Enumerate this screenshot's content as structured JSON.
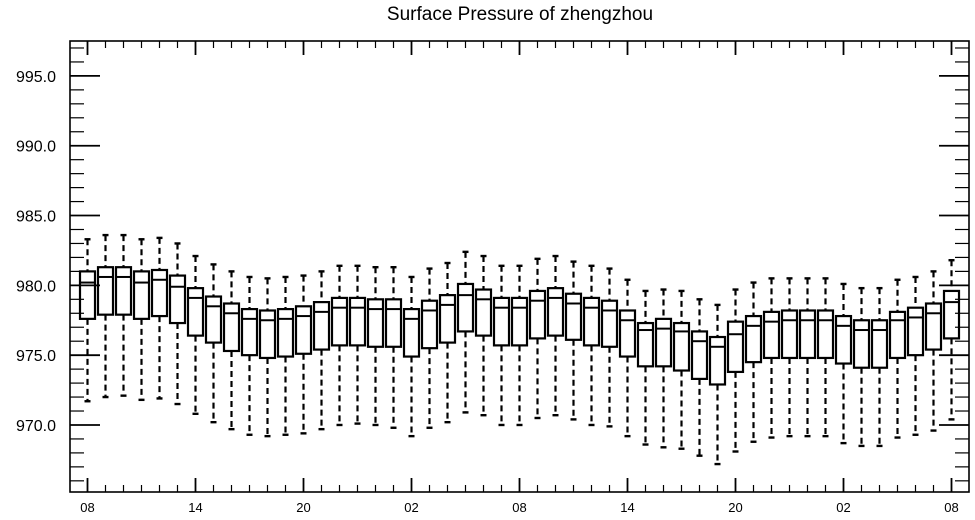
{
  "chart_data": {
    "type": "box",
    "title": "Surface Pressure of zhengzhou",
    "xlabel": "",
    "ylabel": "",
    "ylim": [
      965.2,
      997.5
    ],
    "y_ticks": [
      970.0,
      975.0,
      980.0,
      985.0,
      990.0,
      995.0
    ],
    "y_tick_labels": [
      "970.0",
      "975.0",
      "980.0",
      "985.0",
      "990.0",
      "995.0"
    ],
    "x_tick_labels": [
      "08",
      "14",
      "20",
      "02",
      "08",
      "14",
      "20",
      "02",
      "08"
    ],
    "x_tick_positions": [
      0,
      6,
      12,
      18,
      24,
      30,
      36,
      42,
      48
    ],
    "grid": false,
    "boxes": [
      {
        "x": 0,
        "min": 971.7,
        "q1": 977.6,
        "median": 980.2,
        "q3": 981.0,
        "max": 983.3
      },
      {
        "x": 1,
        "min": 972.0,
        "q1": 977.9,
        "median": 980.6,
        "q3": 981.3,
        "max": 983.6
      },
      {
        "x": 2,
        "min": 972.1,
        "q1": 977.9,
        "median": 980.6,
        "q3": 981.3,
        "max": 983.6
      },
      {
        "x": 3,
        "min": 971.8,
        "q1": 977.6,
        "median": 980.2,
        "q3": 981.0,
        "max": 983.3
      },
      {
        "x": 4,
        "min": 971.9,
        "q1": 977.8,
        "median": 980.4,
        "q3": 981.1,
        "max": 983.4
      },
      {
        "x": 5,
        "min": 971.5,
        "q1": 977.3,
        "median": 979.9,
        "q3": 980.7,
        "max": 983.0
      },
      {
        "x": 6,
        "min": 970.8,
        "q1": 976.4,
        "median": 979.1,
        "q3": 979.8,
        "max": 982.1
      },
      {
        "x": 7,
        "min": 970.2,
        "q1": 975.9,
        "median": 978.5,
        "q3": 979.2,
        "max": 981.5
      },
      {
        "x": 8,
        "min": 969.7,
        "q1": 975.3,
        "median": 978.0,
        "q3": 978.7,
        "max": 981.0
      },
      {
        "x": 9,
        "min": 969.3,
        "q1": 975.0,
        "median": 977.6,
        "q3": 978.3,
        "max": 980.6
      },
      {
        "x": 10,
        "min": 969.2,
        "q1": 974.8,
        "median": 977.5,
        "q3": 978.2,
        "max": 980.5
      },
      {
        "x": 11,
        "min": 969.3,
        "q1": 974.9,
        "median": 977.6,
        "q3": 978.3,
        "max": 980.6
      },
      {
        "x": 12,
        "min": 969.4,
        "q1": 975.1,
        "median": 977.8,
        "q3": 978.5,
        "max": 980.7
      },
      {
        "x": 13,
        "min": 969.7,
        "q1": 975.4,
        "median": 978.1,
        "q3": 978.8,
        "max": 981.0
      },
      {
        "x": 14,
        "min": 970.0,
        "q1": 975.7,
        "median": 978.4,
        "q3": 979.1,
        "max": 981.4
      },
      {
        "x": 15,
        "min": 970.1,
        "q1": 975.7,
        "median": 978.4,
        "q3": 979.1,
        "max": 981.4
      },
      {
        "x": 16,
        "min": 970.0,
        "q1": 975.6,
        "median": 978.3,
        "q3": 979.0,
        "max": 981.3
      },
      {
        "x": 17,
        "min": 969.8,
        "q1": 975.6,
        "median": 978.3,
        "q3": 979.0,
        "max": 981.3
      },
      {
        "x": 18,
        "min": 969.2,
        "q1": 974.9,
        "median": 977.6,
        "q3": 978.3,
        "max": 980.6
      },
      {
        "x": 19,
        "min": 969.8,
        "q1": 975.5,
        "median": 978.2,
        "q3": 978.9,
        "max": 981.2
      },
      {
        "x": 20,
        "min": 970.2,
        "q1": 975.9,
        "median": 978.6,
        "q3": 979.3,
        "max": 981.6
      },
      {
        "x": 21,
        "min": 970.9,
        "q1": 976.7,
        "median": 979.3,
        "q3": 980.1,
        "max": 982.4
      },
      {
        "x": 22,
        "min": 970.7,
        "q1": 976.4,
        "median": 979.0,
        "q3": 979.7,
        "max": 982.1
      },
      {
        "x": 23,
        "min": 970.0,
        "q1": 975.7,
        "median": 978.4,
        "q3": 979.1,
        "max": 981.4
      },
      {
        "x": 24,
        "min": 970.0,
        "q1": 975.7,
        "median": 978.4,
        "q3": 979.1,
        "max": 981.4
      },
      {
        "x": 25,
        "min": 970.5,
        "q1": 976.2,
        "median": 978.9,
        "q3": 979.6,
        "max": 981.9
      },
      {
        "x": 26,
        "min": 970.7,
        "q1": 976.4,
        "median": 979.1,
        "q3": 979.8,
        "max": 982.1
      },
      {
        "x": 27,
        "min": 970.4,
        "q1": 976.1,
        "median": 978.7,
        "q3": 979.4,
        "max": 981.7
      },
      {
        "x": 28,
        "min": 970.0,
        "q1": 975.7,
        "median": 978.4,
        "q3": 979.1,
        "max": 981.4
      },
      {
        "x": 29,
        "min": 969.9,
        "q1": 975.6,
        "median": 978.2,
        "q3": 978.9,
        "max": 981.2
      },
      {
        "x": 30,
        "min": 969.2,
        "q1": 974.9,
        "median": 977.5,
        "q3": 978.2,
        "max": 980.4
      },
      {
        "x": 31,
        "min": 968.6,
        "q1": 974.2,
        "median": 976.8,
        "q3": 977.3,
        "max": 979.6
      },
      {
        "x": 32,
        "min": 968.4,
        "q1": 974.2,
        "median": 976.9,
        "q3": 977.6,
        "max": 979.7
      },
      {
        "x": 33,
        "min": 968.3,
        "q1": 973.9,
        "median": 976.7,
        "q3": 977.3,
        "max": 979.6
      },
      {
        "x": 34,
        "min": 967.8,
        "q1": 973.3,
        "median": 976.0,
        "q3": 976.7,
        "max": 979.0
      },
      {
        "x": 35,
        "min": 967.2,
        "q1": 972.9,
        "median": 975.6,
        "q3": 976.3,
        "max": 978.6
      },
      {
        "x": 36,
        "min": 968.1,
        "q1": 973.8,
        "median": 976.5,
        "q3": 977.4,
        "max": 979.7
      },
      {
        "x": 37,
        "min": 968.8,
        "q1": 974.5,
        "median": 977.1,
        "q3": 977.8,
        "max": 980.2
      },
      {
        "x": 38,
        "min": 969.1,
        "q1": 974.8,
        "median": 977.4,
        "q3": 978.1,
        "max": 980.5
      },
      {
        "x": 39,
        "min": 969.2,
        "q1": 974.8,
        "median": 977.5,
        "q3": 978.2,
        "max": 980.5
      },
      {
        "x": 40,
        "min": 969.2,
        "q1": 974.8,
        "median": 977.5,
        "q3": 978.2,
        "max": 980.5
      },
      {
        "x": 41,
        "min": 969.2,
        "q1": 974.8,
        "median": 977.5,
        "q3": 978.2,
        "max": 980.5
      },
      {
        "x": 42,
        "min": 968.7,
        "q1": 974.4,
        "median": 977.1,
        "q3": 977.8,
        "max": 980.1
      },
      {
        "x": 43,
        "min": 968.5,
        "q1": 974.1,
        "median": 976.8,
        "q3": 977.5,
        "max": 979.8
      },
      {
        "x": 44,
        "min": 968.5,
        "q1": 974.1,
        "median": 976.8,
        "q3": 977.5,
        "max": 979.8
      },
      {
        "x": 45,
        "min": 969.1,
        "q1": 974.8,
        "median": 977.5,
        "q3": 978.1,
        "max": 980.4
      },
      {
        "x": 46,
        "min": 969.3,
        "q1": 975.0,
        "median": 977.7,
        "q3": 978.4,
        "max": 980.6
      },
      {
        "x": 47,
        "min": 969.6,
        "q1": 975.4,
        "median": 978.0,
        "q3": 978.7,
        "max": 981.0
      },
      {
        "x": 48,
        "min": 970.4,
        "q1": 976.2,
        "median": 978.8,
        "q3": 979.6,
        "max": 981.8
      }
    ]
  }
}
